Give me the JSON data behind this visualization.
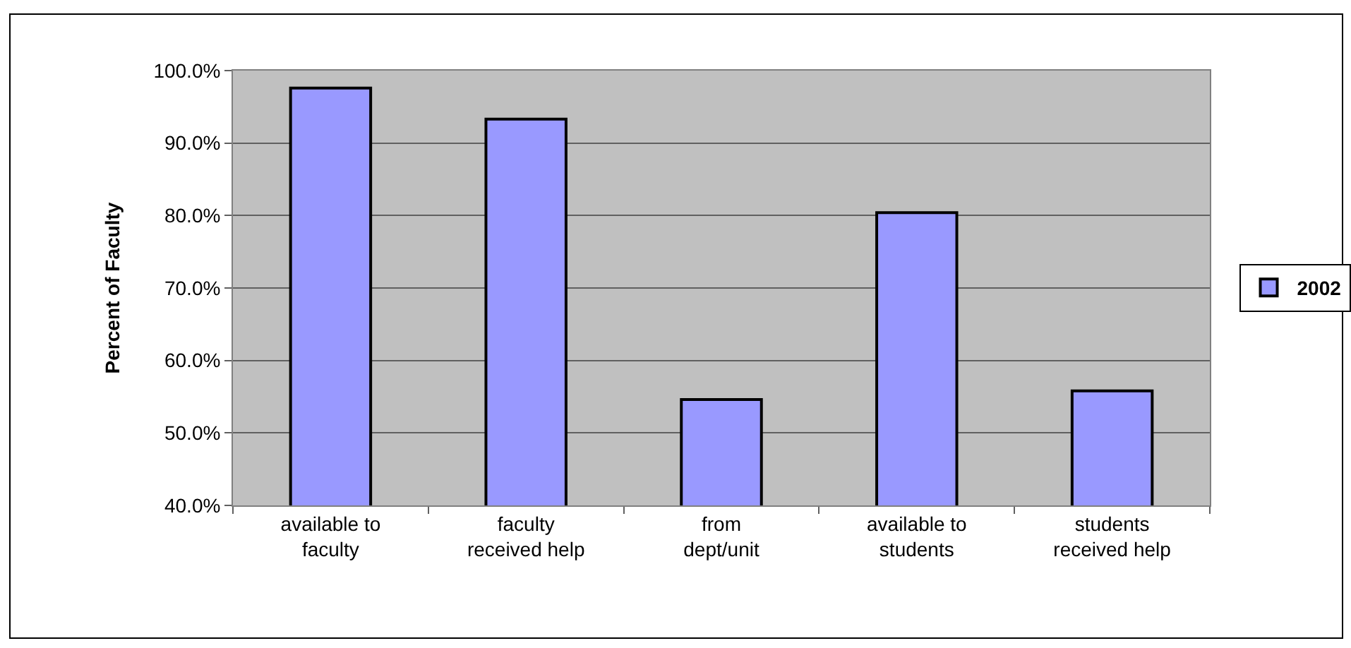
{
  "chart_data": {
    "type": "bar",
    "ylabel": "Percent of Faculty",
    "categories": [
      "available to faculty",
      "faculty received help",
      "from dept/unit",
      "available to students",
      "students received help"
    ],
    "series": [
      {
        "name": "2002",
        "color": "#9999ff",
        "values": [
          97.6,
          93.3,
          54.6,
          80.4,
          55.8
        ]
      }
    ],
    "ylim": [
      40,
      100
    ],
    "yticks": [
      {
        "value": 40,
        "label": "40.0%"
      },
      {
        "value": 50,
        "label": "50.0%"
      },
      {
        "value": 60,
        "label": "60.0%"
      },
      {
        "value": 70,
        "label": "70.0%"
      },
      {
        "value": 80,
        "label": "80.0%"
      },
      {
        "value": 90,
        "label": "90.0%"
      },
      {
        "value": 100,
        "label": "100.0%"
      }
    ],
    "grid": "y",
    "legend": "right"
  }
}
